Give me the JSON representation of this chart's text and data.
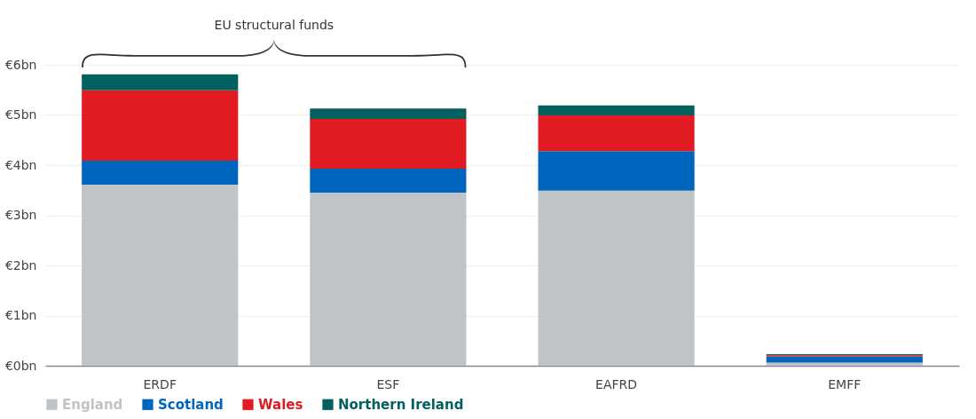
{
  "chart_data": {
    "type": "bar",
    "stacked": true,
    "categories": [
      "ERDF",
      "ESF",
      "EAFRD",
      "EMFF"
    ],
    "series": [
      {
        "name": "England",
        "color": "#c1c4c7",
        "values": [
          3.61,
          3.45,
          3.49,
          0.06
        ]
      },
      {
        "name": "Scotland",
        "color": "#0065bd",
        "values": [
          0.48,
          0.48,
          0.79,
          0.12
        ]
      },
      {
        "name": "Wales",
        "color": "#e01b22",
        "values": [
          1.4,
          0.99,
          0.71,
          0.03
        ]
      },
      {
        "name": "Northern Ireland",
        "color": "#03605e",
        "values": [
          0.32,
          0.21,
          0.2,
          0.02
        ]
      }
    ],
    "ylim": [
      0,
      6
    ],
    "yticks": [
      {
        "value": 0,
        "label": "€0bn"
      },
      {
        "value": 1,
        "label": "€1bn"
      },
      {
        "value": 2,
        "label": "€2bn"
      },
      {
        "value": 3,
        "label": "€3bn"
      },
      {
        "value": 4,
        "label": "€4bn"
      },
      {
        "value": 5,
        "label": "€5bn"
      },
      {
        "value": 6,
        "label": "€6bn"
      }
    ],
    "grid": "y",
    "legend": "bottom",
    "annotations": [
      "EU structural funds"
    ]
  }
}
